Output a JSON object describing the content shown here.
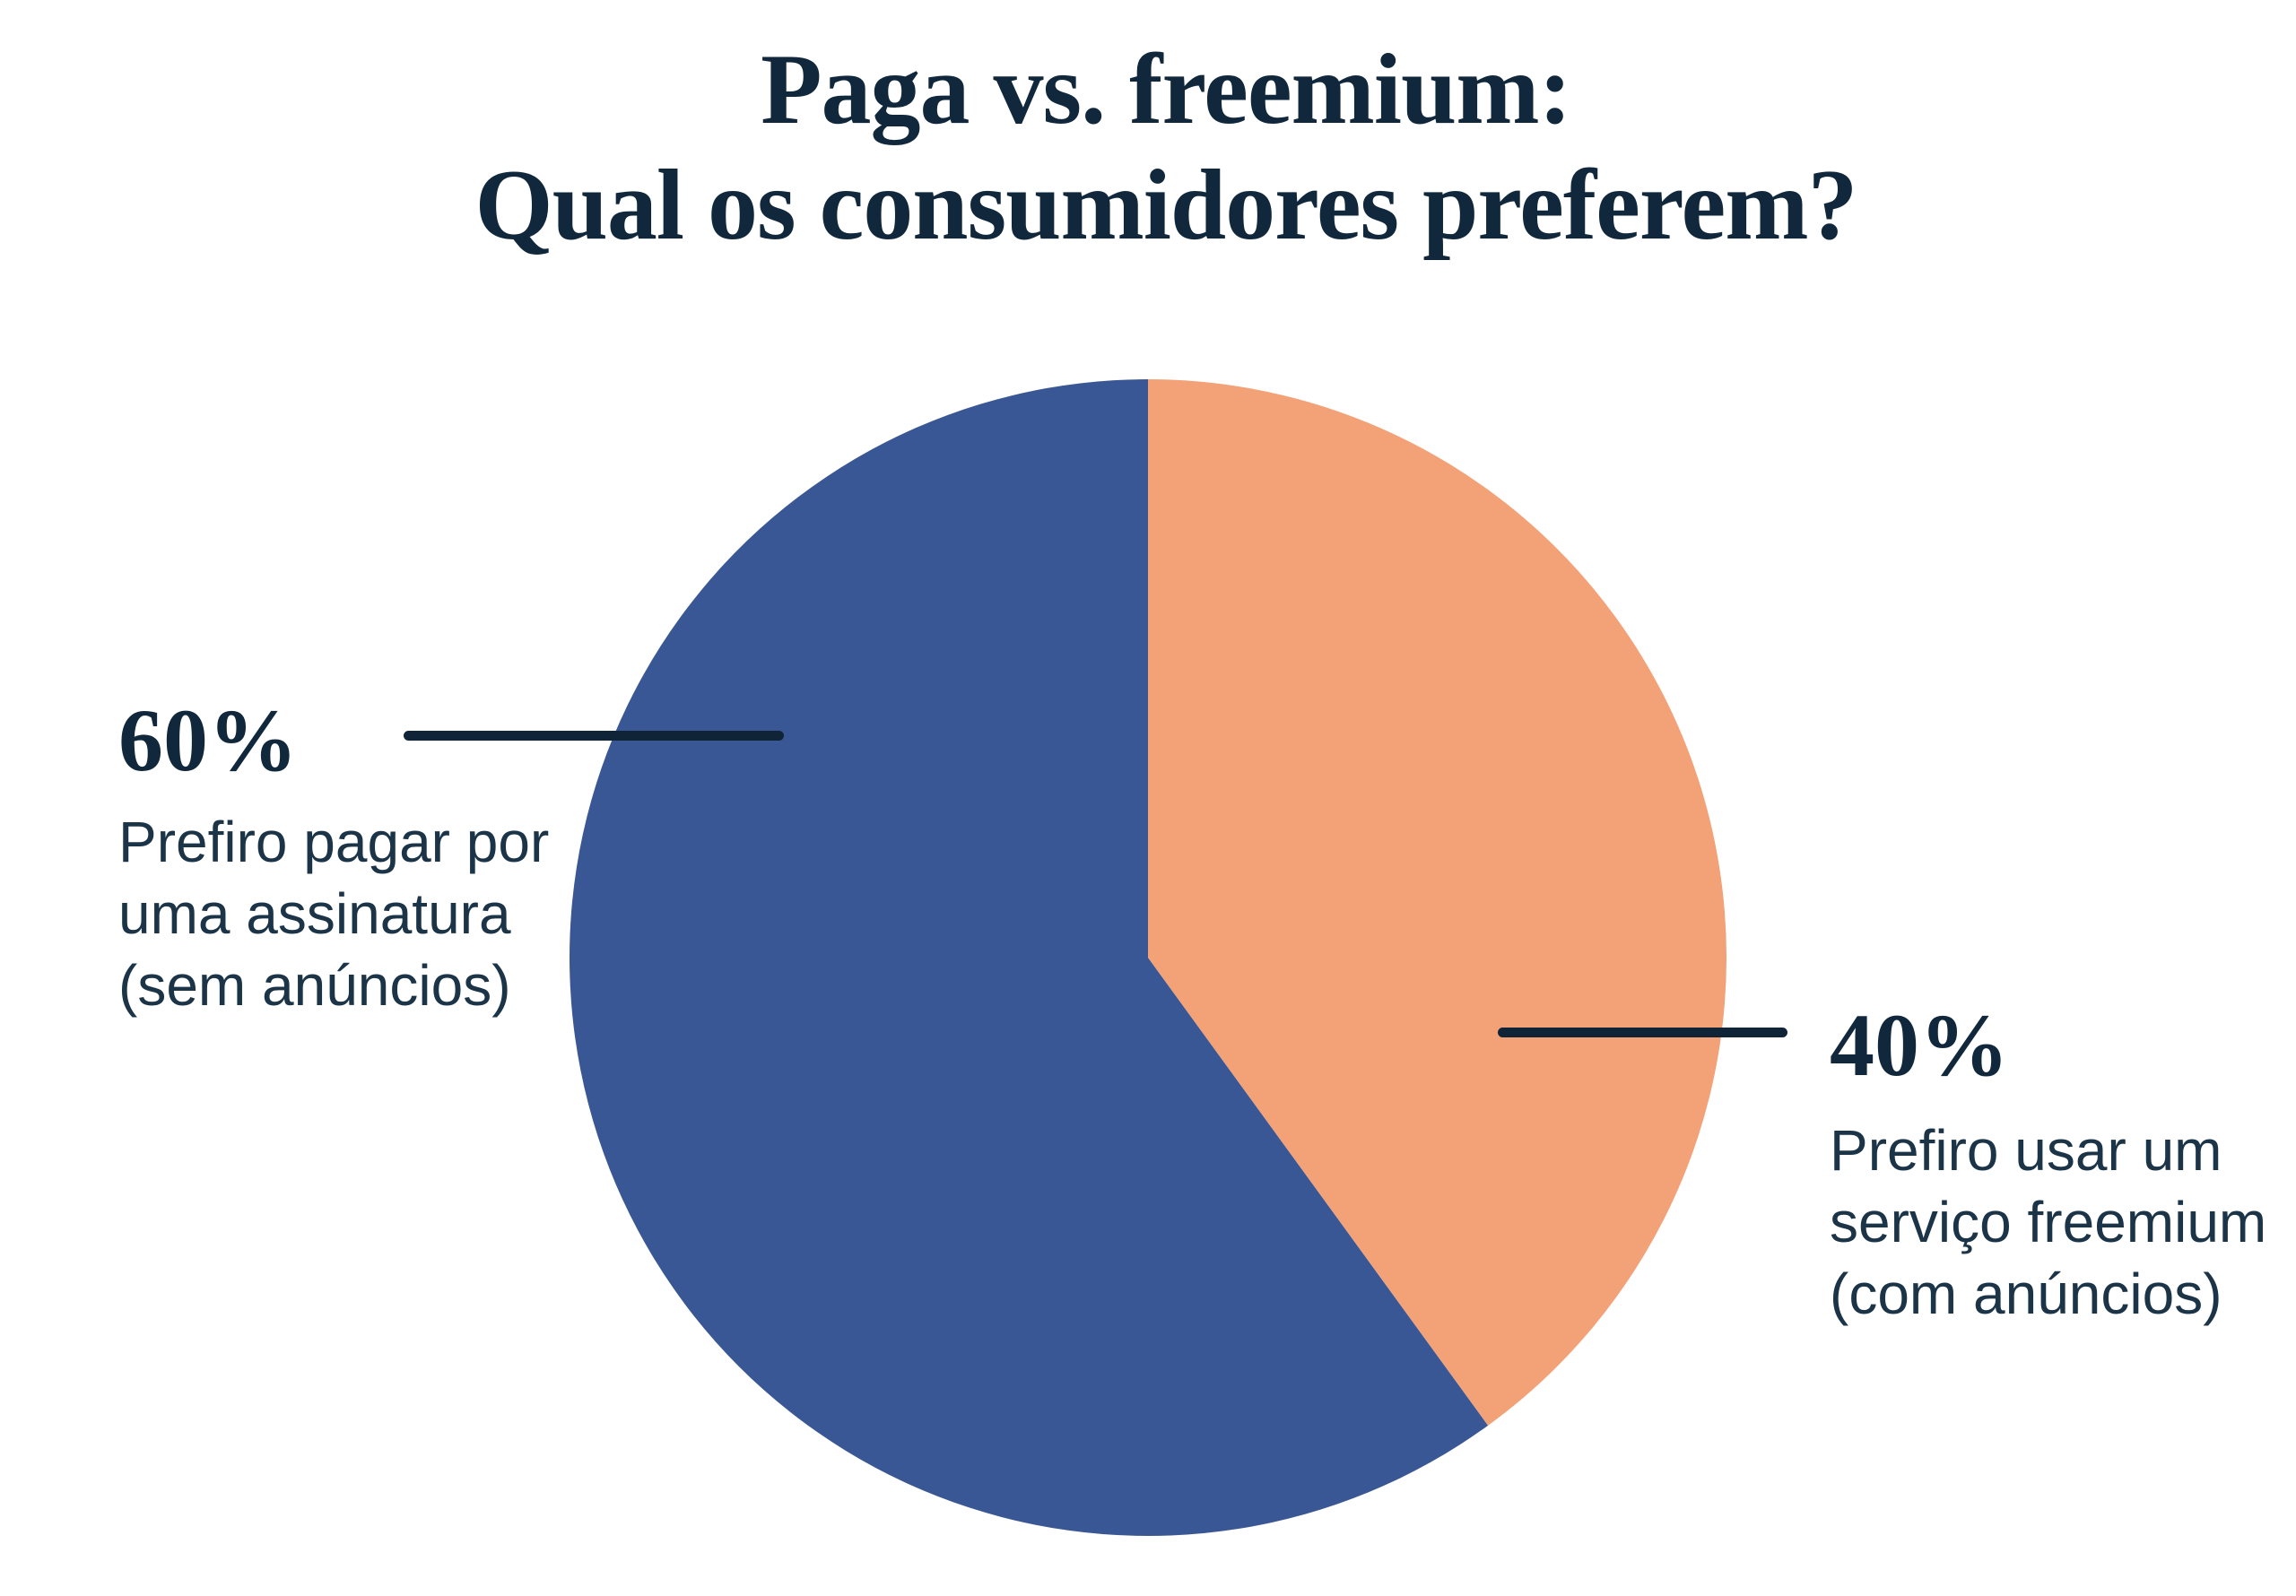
{
  "title": {
    "line1": "Paga vs. freemium:",
    "line2": "Qual os consumidores preferem?"
  },
  "chart_data": {
    "type": "pie",
    "title": "Paga vs. freemium: Qual os consumidores preferem?",
    "legend": "none",
    "labels": "external callouts with leader lines",
    "start_angle_deg": 144,
    "slices": [
      {
        "id": "paid-subscription",
        "pct_label": "60%",
        "value": 60,
        "color": "#3A5795",
        "label": "Prefiro pagar por uma assinatura (sem anúncios)",
        "label_lines": [
          "Prefiro pagar por",
          "uma assinatura",
          "(sem anúncios)"
        ],
        "label_position": "left"
      },
      {
        "id": "freemium-service",
        "pct_label": "40%",
        "value": 40,
        "color": "#F3A176",
        "label": "Prefiro usar um serviço freemium (com anúncios)",
        "label_lines": [
          "Prefiro usar um",
          "serviço freemium",
          "(com anúncios)"
        ],
        "label_position": "right"
      }
    ]
  },
  "colors": {
    "background": "#FFFFFF",
    "heading_text": "#11283C",
    "body_text": "#1C3447",
    "leader_line": "#0F2537"
  }
}
